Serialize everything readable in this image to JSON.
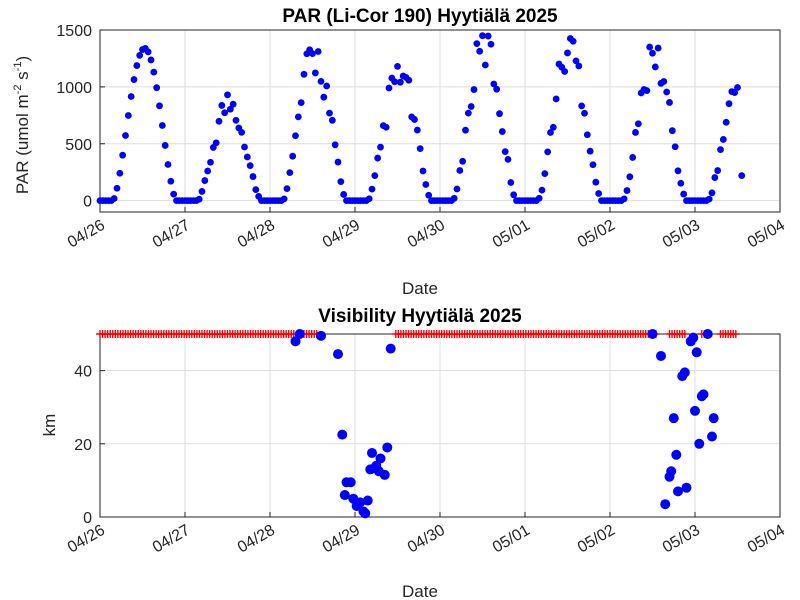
{
  "chart_data": [
    {
      "type": "scatter",
      "title": "PAR (Li-Cor 190) Hyytiälä 2025",
      "xlabel": "Date",
      "ylabel": "PAR (umol m -2 s -1)",
      "ylabel_parts": [
        "PAR (umol m",
        "-2",
        " s",
        "-1",
        ")"
      ],
      "xticks": [
        "04/26",
        "04/27",
        "04/28",
        "04/29",
        "04/30",
        "05/01",
        "05/02",
        "05/03",
        "05/04"
      ],
      "yticks": [
        "0",
        "500",
        "1000",
        "1500"
      ],
      "ylim": [
        -100,
        1500
      ],
      "xlim_days": [
        0,
        8
      ],
      "grid": true,
      "marker_color": "#0000ff",
      "daily_peaks": [
        1340,
        930,
        1360,
        1180,
        1450,
        1430,
        1350,
        1080
      ],
      "last_day_end_value": 220
    },
    {
      "type": "scatter",
      "title": "Visibility Hyytiälä 2025",
      "xlabel": "Date",
      "ylabel": "km",
      "xticks": [
        "04/26",
        "04/27",
        "04/28",
        "04/29",
        "04/30",
        "05/01",
        "05/02",
        "05/03",
        "05/04"
      ],
      "yticks": [
        "0",
        "20",
        "40"
      ],
      "ylim": [
        0,
        50
      ],
      "xlim_days": [
        0,
        8
      ],
      "grid": true,
      "series": [
        {
          "marker": "circle",
          "color": "#0000ff",
          "points": [
            [
              2.3,
              48
            ],
            [
              2.35,
              50
            ],
            [
              2.6,
              49.5
            ],
            [
              2.8,
              44.5
            ],
            [
              2.85,
              22.5
            ],
            [
              2.9,
              9.5
            ],
            [
              2.95,
              9.5
            ],
            [
              2.88,
              6
            ],
            [
              2.98,
              5
            ],
            [
              3.02,
              3
            ],
            [
              3.06,
              4
            ],
            [
              3.1,
              1.5
            ],
            [
              3.12,
              1
            ],
            [
              3.15,
              4.5
            ],
            [
              3.18,
              13
            ],
            [
              3.2,
              17.5
            ],
            [
              3.25,
              14
            ],
            [
              3.28,
              12.5
            ],
            [
              3.3,
              16
            ],
            [
              3.35,
              11.5
            ],
            [
              3.38,
              19
            ],
            [
              3.42,
              46
            ],
            [
              6.5,
              50
            ],
            [
              6.6,
              44
            ],
            [
              6.65,
              3.5
            ],
            [
              6.7,
              11
            ],
            [
              6.72,
              12.5
            ],
            [
              6.75,
              27
            ],
            [
              6.78,
              17
            ],
            [
              6.8,
              7
            ],
            [
              6.85,
              38.5
            ],
            [
              6.88,
              39.5
            ],
            [
              6.9,
              8
            ],
            [
              6.95,
              48
            ],
            [
              6.98,
              49
            ],
            [
              7.0,
              29
            ],
            [
              7.02,
              45
            ],
            [
              7.05,
              20
            ],
            [
              7.08,
              33
            ],
            [
              7.1,
              33.5
            ],
            [
              7.15,
              50
            ],
            [
              7.2,
              22
            ],
            [
              7.22,
              27
            ]
          ]
        },
        {
          "marker": "plus",
          "color": "#ff0000",
          "value": 50,
          "segments": [
            [
              0.0,
              2.28
            ],
            [
              2.4,
              2.55
            ],
            [
              3.48,
              6.55
            ],
            [
              6.7,
              6.9
            ],
            [
              7.08,
              7.12
            ],
            [
              7.3,
              7.5
            ]
          ],
          "step": 0.03
        }
      ]
    }
  ]
}
